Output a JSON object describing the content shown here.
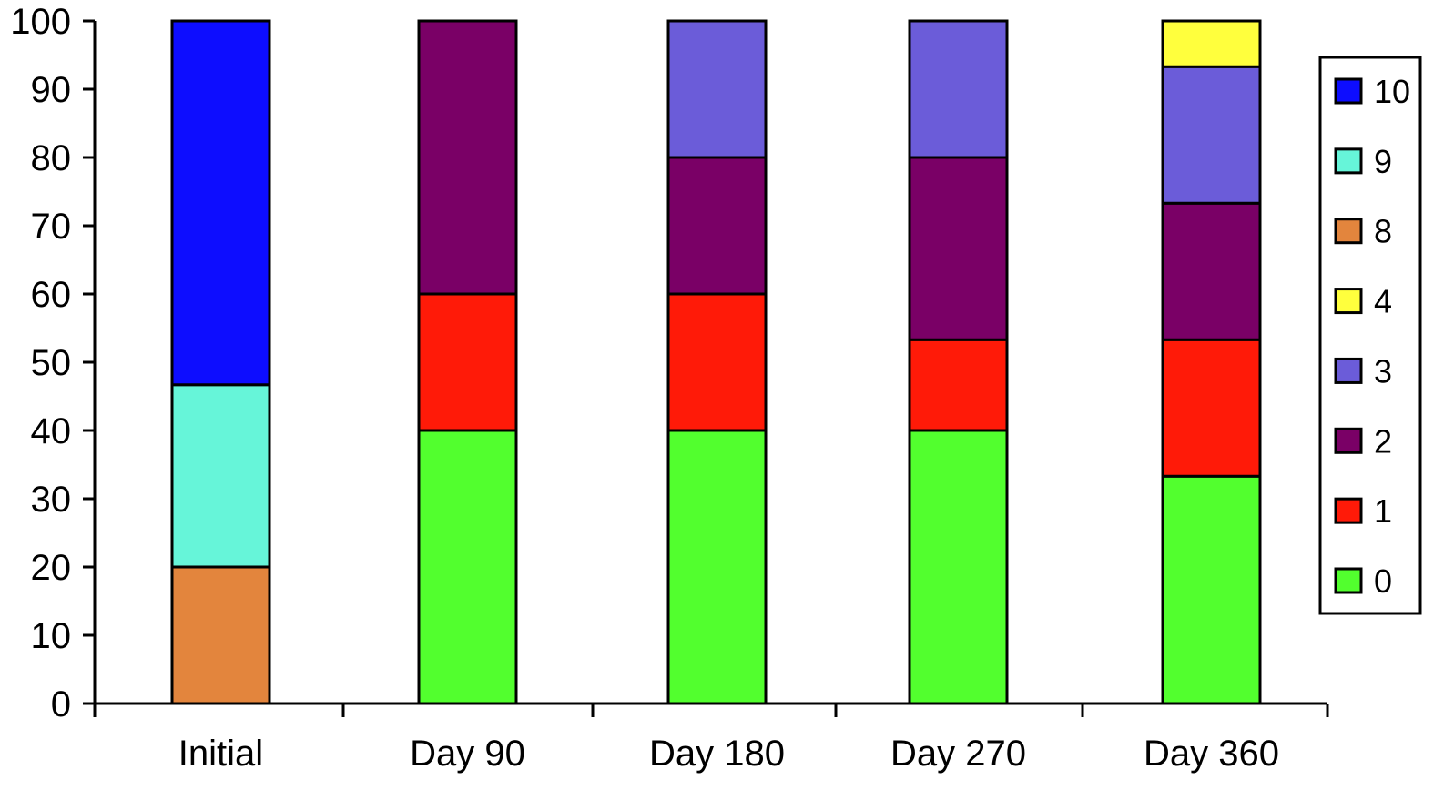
{
  "chart_data": {
    "type": "bar",
    "stacked": true,
    "title": "",
    "xlabel": "",
    "ylabel": "",
    "ylim": [
      0,
      100
    ],
    "yticks": [
      0,
      10,
      20,
      30,
      40,
      50,
      60,
      70,
      80,
      90,
      100
    ],
    "grid": false,
    "legend_position": "right",
    "categories": [
      "Initial",
      "Day 90",
      "Day 180",
      "Day 270",
      "Day 360"
    ],
    "series": [
      {
        "name": "0",
        "color": "#52FF2E",
        "values": [
          0,
          40,
          40,
          40,
          33.3
        ]
      },
      {
        "name": "1",
        "color": "#FF1A08",
        "values": [
          0,
          20,
          20,
          13.3,
          20
        ]
      },
      {
        "name": "2",
        "color": "#7A0066",
        "values": [
          0,
          40,
          20,
          26.7,
          20
        ]
      },
      {
        "name": "3",
        "color": "#6B5CD9",
        "values": [
          0,
          0,
          20,
          20,
          20
        ]
      },
      {
        "name": "4",
        "color": "#FFFF3D",
        "values": [
          0,
          0,
          0,
          0,
          6.7
        ]
      },
      {
        "name": "8",
        "color": "#E3853D",
        "values": [
          20,
          0,
          0,
          0,
          0
        ]
      },
      {
        "name": "9",
        "color": "#66F5D9",
        "values": [
          26.7,
          0,
          0,
          0,
          0
        ]
      },
      {
        "name": "10",
        "color": "#0D0DFF",
        "values": [
          53.3,
          0,
          0,
          0,
          0
        ]
      }
    ],
    "legend_order": [
      "10",
      "9",
      "8",
      "4",
      "3",
      "2",
      "1",
      "0"
    ]
  }
}
